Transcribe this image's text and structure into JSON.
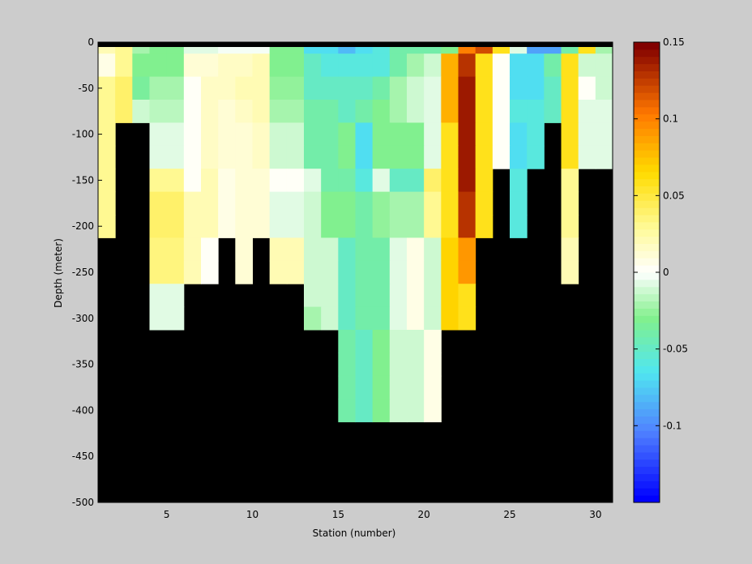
{
  "chart_data": {
    "type": "heatmap",
    "title": "",
    "xlabel": "Station (number)",
    "ylabel": "Depth (meter)",
    "xlim": [
      1,
      31
    ],
    "ylim": [
      -500,
      0
    ],
    "x_ticks": [
      5,
      10,
      15,
      20,
      25,
      30
    ],
    "y_ticks": [
      0,
      -50,
      -100,
      -150,
      -200,
      -250,
      -300,
      -350,
      -400,
      -450,
      -500
    ],
    "colorbar": {
      "colormap": "jet-like with white at zero",
      "range": [
        -0.15,
        0.15
      ],
      "ticks": [
        -0.1,
        -0.05,
        0,
        0.05,
        0.1,
        0.15
      ],
      "tick_labels": [
        "-0.1",
        "-0.05",
        "0",
        "0.05",
        "0.1",
        "0.15"
      ],
      "levels": 64
    },
    "missing_color": "#000000",
    "row_depths": [
      -5,
      -25,
      -50,
      -75,
      -100,
      -125,
      -150,
      -175,
      -200,
      -225,
      -250,
      -275,
      -300,
      -325,
      -350,
      -375,
      -400
    ],
    "stations": [
      1.5,
      2.5,
      3.5,
      4.5,
      5.5,
      6.5,
      7.5,
      8.5,
      9.5,
      10.5,
      11.5,
      12.5,
      13.5,
      14.5,
      15.5,
      16.5,
      17.5,
      18.5,
      19.5,
      20.5,
      21.5,
      22.5,
      23.5,
      24.5,
      25.5,
      26.5,
      27.5,
      28.5,
      29.5,
      30.5
    ],
    "values": [
      [
        0.02,
        0.03,
        -0.02,
        -0.03,
        -0.03,
        -0.005,
        -0.005,
        -0.002,
        -0.002,
        -0.003,
        -0.03,
        -0.03,
        -0.07,
        -0.07,
        -0.08,
        -0.07,
        -0.06,
        -0.04,
        -0.04,
        -0.04,
        -0.03,
        0.1,
        0.12,
        0.06,
        -0.005,
        -0.09,
        -0.09,
        -0.04,
        0.06,
        -0.02
      ],
      [
        0.005,
        0.03,
        -0.03,
        -0.03,
        -0.03,
        0.01,
        0.01,
        0.015,
        0.015,
        0.02,
        -0.03,
        -0.03,
        -0.05,
        -0.06,
        -0.06,
        -0.06,
        -0.06,
        -0.04,
        -0.02,
        -0.01,
        0.08,
        0.13,
        0.06,
        0.0,
        -0.07,
        -0.07,
        -0.04,
        0.06,
        -0.01,
        -0.01
      ],
      [
        0.03,
        0.04,
        -0.035,
        -0.02,
        -0.02,
        0.0,
        0.015,
        0.015,
        0.02,
        0.02,
        -0.025,
        -0.025,
        -0.05,
        -0.05,
        -0.05,
        -0.05,
        -0.04,
        -0.02,
        -0.01,
        -0.005,
        0.08,
        0.14,
        0.06,
        0.0,
        -0.07,
        -0.07,
        -0.05,
        0.06,
        0.0,
        -0.01
      ],
      [
        0.03,
        0.04,
        -0.01,
        -0.015,
        -0.015,
        0.0,
        0.015,
        0.01,
        0.015,
        0.02,
        -0.02,
        -0.02,
        -0.04,
        -0.04,
        -0.05,
        -0.04,
        -0.03,
        -0.02,
        -0.01,
        -0.005,
        0.08,
        0.14,
        0.06,
        0.0,
        -0.06,
        -0.06,
        -0.05,
        0.06,
        -0.005,
        -0.005
      ],
      [
        0.03,
        null,
        null,
        -0.005,
        -0.005,
        0.0,
        0.015,
        0.01,
        0.01,
        0.015,
        -0.01,
        -0.01,
        -0.04,
        -0.04,
        -0.03,
        -0.07,
        -0.03,
        -0.03,
        -0.03,
        -0.005,
        0.06,
        0.14,
        0.06,
        0.0,
        -0.07,
        -0.06,
        null,
        0.06,
        -0.005,
        -0.005
      ],
      [
        0.03,
        null,
        null,
        -0.005,
        -0.005,
        0.0,
        0.015,
        0.01,
        0.01,
        0.015,
        -0.01,
        -0.01,
        -0.04,
        -0.04,
        -0.03,
        -0.07,
        -0.03,
        -0.03,
        -0.03,
        -0.005,
        0.06,
        0.14,
        0.06,
        0.0,
        -0.07,
        -0.06,
        null,
        0.06,
        -0.005,
        -0.005
      ],
      [
        0.03,
        null,
        null,
        0.03,
        0.03,
        0.0,
        0.02,
        0.005,
        0.01,
        0.01,
        0.0,
        0.0,
        -0.005,
        -0.04,
        -0.04,
        -0.06,
        -0.005,
        -0.05,
        -0.05,
        0.04,
        0.06,
        0.14,
        0.06,
        null,
        -0.06,
        null,
        null,
        0.03,
        null,
        null
      ],
      [
        0.03,
        null,
        null,
        0.04,
        0.04,
        0.02,
        0.02,
        0.005,
        0.01,
        0.01,
        -0.005,
        -0.005,
        -0.01,
        -0.03,
        -0.03,
        -0.04,
        -0.025,
        -0.02,
        -0.02,
        0.03,
        0.06,
        0.13,
        0.06,
        null,
        -0.06,
        null,
        null,
        0.03,
        null,
        null
      ],
      [
        0.03,
        null,
        null,
        0.04,
        0.04,
        0.02,
        0.02,
        0.005,
        0.01,
        0.01,
        -0.005,
        -0.005,
        -0.01,
        -0.03,
        -0.03,
        -0.04,
        -0.025,
        -0.02,
        -0.02,
        0.03,
        0.06,
        0.13,
        0.06,
        null,
        -0.06,
        null,
        null,
        0.03,
        null,
        null
      ],
      [
        null,
        null,
        null,
        0.035,
        0.035,
        0.02,
        0.0,
        null,
        0.01,
        null,
        0.02,
        0.02,
        -0.01,
        -0.01,
        -0.05,
        -0.04,
        -0.04,
        -0.005,
        0.005,
        -0.01,
        0.07,
        0.09,
        null,
        null,
        null,
        null,
        null,
        0.02,
        null,
        null
      ],
      [
        null,
        null,
        null,
        0.035,
        0.035,
        0.02,
        0.0,
        null,
        0.01,
        null,
        0.02,
        0.02,
        -0.01,
        -0.01,
        -0.05,
        -0.04,
        -0.04,
        -0.005,
        0.005,
        -0.01,
        0.07,
        0.09,
        null,
        null,
        null,
        null,
        null,
        0.02,
        null,
        null
      ],
      [
        null,
        null,
        null,
        -0.005,
        -0.005,
        null,
        null,
        null,
        null,
        null,
        null,
        null,
        -0.01,
        -0.01,
        -0.05,
        -0.04,
        -0.04,
        -0.005,
        0.005,
        -0.01,
        0.07,
        0.06,
        null,
        null,
        null,
        null,
        null,
        null,
        null,
        null
      ],
      [
        null,
        null,
        null,
        -0.005,
        -0.005,
        null,
        null,
        null,
        null,
        null,
        null,
        null,
        -0.02,
        -0.01,
        -0.05,
        -0.04,
        -0.04,
        -0.005,
        0.005,
        -0.01,
        0.07,
        0.06,
        null,
        null,
        null,
        null,
        null,
        null,
        null,
        null
      ],
      [
        null,
        null,
        null,
        null,
        null,
        null,
        null,
        null,
        null,
        null,
        null,
        null,
        null,
        null,
        -0.04,
        -0.05,
        -0.03,
        -0.01,
        -0.01,
        0.005,
        null,
        null,
        null,
        null,
        null,
        null,
        null,
        null,
        null,
        null
      ],
      [
        null,
        null,
        null,
        null,
        null,
        null,
        null,
        null,
        null,
        null,
        null,
        null,
        null,
        null,
        -0.04,
        -0.05,
        -0.03,
        -0.01,
        -0.01,
        0.005,
        null,
        null,
        null,
        null,
        null,
        null,
        null,
        null,
        null,
        null
      ],
      [
        null,
        null,
        null,
        null,
        null,
        null,
        null,
        null,
        null,
        null,
        null,
        null,
        null,
        null,
        -0.04,
        -0.05,
        -0.03,
        -0.01,
        -0.01,
        0.005,
        null,
        null,
        null,
        null,
        null,
        null,
        null,
        null,
        null,
        null
      ],
      [
        null,
        null,
        null,
        null,
        null,
        null,
        null,
        null,
        null,
        null,
        null,
        null,
        null,
        null,
        -0.04,
        -0.05,
        -0.03,
        -0.01,
        -0.01,
        0.005,
        null,
        null,
        null,
        null,
        null,
        null,
        null,
        null,
        null,
        null
      ]
    ]
  }
}
